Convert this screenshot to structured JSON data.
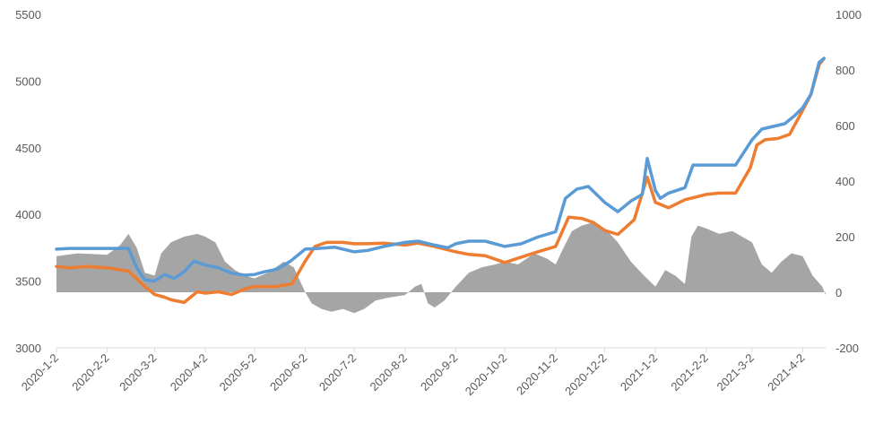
{
  "chart_data": {
    "type": "line",
    "title": "",
    "xlabel": "",
    "ylabel": "",
    "y2label": "",
    "x_ticks": [
      "2020-1-2",
      "2020-2-2",
      "2020-3-2",
      "2020-4-2",
      "2020-5-2",
      "2020-6-2",
      "2020-7-2",
      "2020-8-2",
      "2020-9-2",
      "2020-10-2",
      "2020-11-2",
      "2020-12-2",
      "2021-1-2",
      "2021-2-2",
      "2021-3-2",
      "2021-4-2"
    ],
    "ylim": [
      3000,
      5500
    ],
    "y_ticks": [
      "3000",
      "3500",
      "4000",
      "4500",
      "5000",
      "5500"
    ],
    "y2lim": [
      -200,
      1000
    ],
    "y2_ticks": [
      "-200",
      "0",
      "200",
      "400",
      "600",
      "800",
      "1000"
    ],
    "grid": false,
    "legend": "none",
    "colors": {
      "blue": "#5b9bd5",
      "orange": "#ed7d31",
      "area": "#a5a5a5"
    },
    "series": [
      {
        "color_key": "blue",
        "axis": "left",
        "points": [
          [
            "2020-01-02",
            3740
          ],
          [
            "2020-01-10",
            3745
          ],
          [
            "2020-01-20",
            3745
          ],
          [
            "2020-02-02",
            3745
          ],
          [
            "2020-02-10",
            3745
          ],
          [
            "2020-02-15",
            3745
          ],
          [
            "2020-02-20",
            3600
          ],
          [
            "2020-02-25",
            3510
          ],
          [
            "2020-03-02",
            3500
          ],
          [
            "2020-03-08",
            3550
          ],
          [
            "2020-03-14",
            3520
          ],
          [
            "2020-03-20",
            3570
          ],
          [
            "2020-03-26",
            3650
          ],
          [
            "2020-04-02",
            3620
          ],
          [
            "2020-04-10",
            3600
          ],
          [
            "2020-04-18",
            3560
          ],
          [
            "2020-04-26",
            3545
          ],
          [
            "2020-05-02",
            3550
          ],
          [
            "2020-05-08",
            3570
          ],
          [
            "2020-05-16",
            3590
          ],
          [
            "2020-05-24",
            3650
          ],
          [
            "2020-06-02",
            3740
          ],
          [
            "2020-06-10",
            3745
          ],
          [
            "2020-06-20",
            3755
          ],
          [
            "2020-07-02",
            3720
          ],
          [
            "2020-07-10",
            3730
          ],
          [
            "2020-07-20",
            3760
          ],
          [
            "2020-08-02",
            3790
          ],
          [
            "2020-08-10",
            3800
          ],
          [
            "2020-08-20",
            3770
          ],
          [
            "2020-08-28",
            3750
          ],
          [
            "2020-09-02",
            3780
          ],
          [
            "2020-09-10",
            3800
          ],
          [
            "2020-09-20",
            3800
          ],
          [
            "2020-10-02",
            3760
          ],
          [
            "2020-10-12",
            3780
          ],
          [
            "2020-10-22",
            3830
          ],
          [
            "2020-11-02",
            3870
          ],
          [
            "2020-11-08",
            4120
          ],
          [
            "2020-11-15",
            4190
          ],
          [
            "2020-11-22",
            4210
          ],
          [
            "2020-12-02",
            4090
          ],
          [
            "2020-12-10",
            4020
          ],
          [
            "2020-12-18",
            4100
          ],
          [
            "2020-12-25",
            4150
          ],
          [
            "2020-12-28",
            4420
          ],
          [
            "2021-01-02",
            4180
          ],
          [
            "2021-01-05",
            4120
          ],
          [
            "2021-01-10",
            4160
          ],
          [
            "2021-01-20",
            4200
          ],
          [
            "2021-01-25",
            4370
          ],
          [
            "2021-02-02",
            4370
          ],
          [
            "2021-02-10",
            4370
          ],
          [
            "2021-02-20",
            4370
          ],
          [
            "2021-03-02",
            4560
          ],
          [
            "2021-03-08",
            4640
          ],
          [
            "2021-03-15",
            4660
          ],
          [
            "2021-03-22",
            4680
          ],
          [
            "2021-03-28",
            4740
          ],
          [
            "2021-04-02",
            4800
          ],
          [
            "2021-04-07",
            4900
          ],
          [
            "2021-04-12",
            5140
          ],
          [
            "2021-04-15",
            5170
          ]
        ]
      },
      {
        "color_key": "orange",
        "axis": "left",
        "points": [
          [
            "2020-01-02",
            3610
          ],
          [
            "2020-01-10",
            3600
          ],
          [
            "2020-01-20",
            3610
          ],
          [
            "2020-02-02",
            3600
          ],
          [
            "2020-02-15",
            3575
          ],
          [
            "2020-02-25",
            3460
          ],
          [
            "2020-03-02",
            3400
          ],
          [
            "2020-03-08",
            3380
          ],
          [
            "2020-03-12",
            3360
          ],
          [
            "2020-03-20",
            3340
          ],
          [
            "2020-03-28",
            3420
          ],
          [
            "2020-04-02",
            3410
          ],
          [
            "2020-04-10",
            3420
          ],
          [
            "2020-04-18",
            3400
          ],
          [
            "2020-04-26",
            3440
          ],
          [
            "2020-05-02",
            3460
          ],
          [
            "2020-05-15",
            3460
          ],
          [
            "2020-05-25",
            3480
          ],
          [
            "2020-06-02",
            3650
          ],
          [
            "2020-06-08",
            3760
          ],
          [
            "2020-06-15",
            3790
          ],
          [
            "2020-06-25",
            3790
          ],
          [
            "2020-07-02",
            3780
          ],
          [
            "2020-07-10",
            3780
          ],
          [
            "2020-07-20",
            3785
          ],
          [
            "2020-08-02",
            3770
          ],
          [
            "2020-08-10",
            3785
          ],
          [
            "2020-08-20",
            3760
          ],
          [
            "2020-09-02",
            3720
          ],
          [
            "2020-09-10",
            3700
          ],
          [
            "2020-09-20",
            3690
          ],
          [
            "2020-10-02",
            3640
          ],
          [
            "2020-10-12",
            3680
          ],
          [
            "2020-10-22",
            3720
          ],
          [
            "2020-11-02",
            3760
          ],
          [
            "2020-11-10",
            3980
          ],
          [
            "2020-11-18",
            3970
          ],
          [
            "2020-11-25",
            3940
          ],
          [
            "2020-12-02",
            3880
          ],
          [
            "2020-12-10",
            3850
          ],
          [
            "2020-12-20",
            3960
          ],
          [
            "2020-12-28",
            4280
          ],
          [
            "2021-01-02",
            4090
          ],
          [
            "2021-01-10",
            4050
          ],
          [
            "2021-01-20",
            4110
          ],
          [
            "2021-02-02",
            4150
          ],
          [
            "2021-02-10",
            4160
          ],
          [
            "2021-02-20",
            4160
          ],
          [
            "2021-03-01",
            4350
          ],
          [
            "2021-03-05",
            4520
          ],
          [
            "2021-03-10",
            4560
          ],
          [
            "2021-03-18",
            4570
          ],
          [
            "2021-03-25",
            4600
          ],
          [
            "2021-04-02",
            4780
          ],
          [
            "2021-04-07",
            4900
          ],
          [
            "2021-04-12",
            5120
          ],
          [
            "2021-04-15",
            5170
          ]
        ]
      },
      {
        "color_key": "area",
        "axis": "right",
        "fill": true,
        "points": [
          [
            "2020-01-02",
            130
          ],
          [
            "2020-01-15",
            140
          ],
          [
            "2020-02-02",
            135
          ],
          [
            "2020-02-10",
            170
          ],
          [
            "2020-02-15",
            210
          ],
          [
            "2020-02-20",
            160
          ],
          [
            "2020-02-25",
            70
          ],
          [
            "2020-03-02",
            60
          ],
          [
            "2020-03-06",
            140
          ],
          [
            "2020-03-12",
            180
          ],
          [
            "2020-03-20",
            200
          ],
          [
            "2020-03-28",
            210
          ],
          [
            "2020-04-02",
            200
          ],
          [
            "2020-04-08",
            180
          ],
          [
            "2020-04-14",
            110
          ],
          [
            "2020-04-20",
            80
          ],
          [
            "2020-04-26",
            60
          ],
          [
            "2020-05-02",
            50
          ],
          [
            "2020-05-10",
            70
          ],
          [
            "2020-05-20",
            110
          ],
          [
            "2020-05-26",
            90
          ],
          [
            "2020-06-02",
            0
          ],
          [
            "2020-06-06",
            -40
          ],
          [
            "2020-06-12",
            -60
          ],
          [
            "2020-06-18",
            -70
          ],
          [
            "2020-06-25",
            -60
          ],
          [
            "2020-07-02",
            -75
          ],
          [
            "2020-07-08",
            -60
          ],
          [
            "2020-07-15",
            -30
          ],
          [
            "2020-07-22",
            -20
          ],
          [
            "2020-08-02",
            -10
          ],
          [
            "2020-08-08",
            20
          ],
          [
            "2020-08-12",
            30
          ],
          [
            "2020-08-16",
            -40
          ],
          [
            "2020-08-20",
            -55
          ],
          [
            "2020-08-26",
            -30
          ],
          [
            "2020-09-02",
            20
          ],
          [
            "2020-09-10",
            70
          ],
          [
            "2020-09-18",
            90
          ],
          [
            "2020-09-26",
            100
          ],
          [
            "2020-10-02",
            110
          ],
          [
            "2020-10-10",
            100
          ],
          [
            "2020-10-20",
            140
          ],
          [
            "2020-10-28",
            120
          ],
          [
            "2020-11-02",
            100
          ],
          [
            "2020-11-06",
            150
          ],
          [
            "2020-11-12",
            220
          ],
          [
            "2020-11-18",
            240
          ],
          [
            "2020-11-24",
            250
          ],
          [
            "2020-12-02",
            230
          ],
          [
            "2020-12-10",
            180
          ],
          [
            "2020-12-18",
            110
          ],
          [
            "2020-12-26",
            60
          ],
          [
            "2021-01-02",
            20
          ],
          [
            "2021-01-08",
            80
          ],
          [
            "2021-01-14",
            60
          ],
          [
            "2021-01-20",
            30
          ],
          [
            "2021-01-24",
            200
          ],
          [
            "2021-01-28",
            240
          ],
          [
            "2021-02-02",
            230
          ],
          [
            "2021-02-10",
            210
          ],
          [
            "2021-02-18",
            220
          ],
          [
            "2021-02-24",
            200
          ],
          [
            "2021-03-02",
            180
          ],
          [
            "2021-03-08",
            100
          ],
          [
            "2021-03-14",
            70
          ],
          [
            "2021-03-20",
            110
          ],
          [
            "2021-03-26",
            140
          ],
          [
            "2021-04-02",
            130
          ],
          [
            "2021-04-08",
            60
          ],
          [
            "2021-04-14",
            20
          ],
          [
            "2021-04-16",
            -10
          ]
        ]
      }
    ]
  }
}
